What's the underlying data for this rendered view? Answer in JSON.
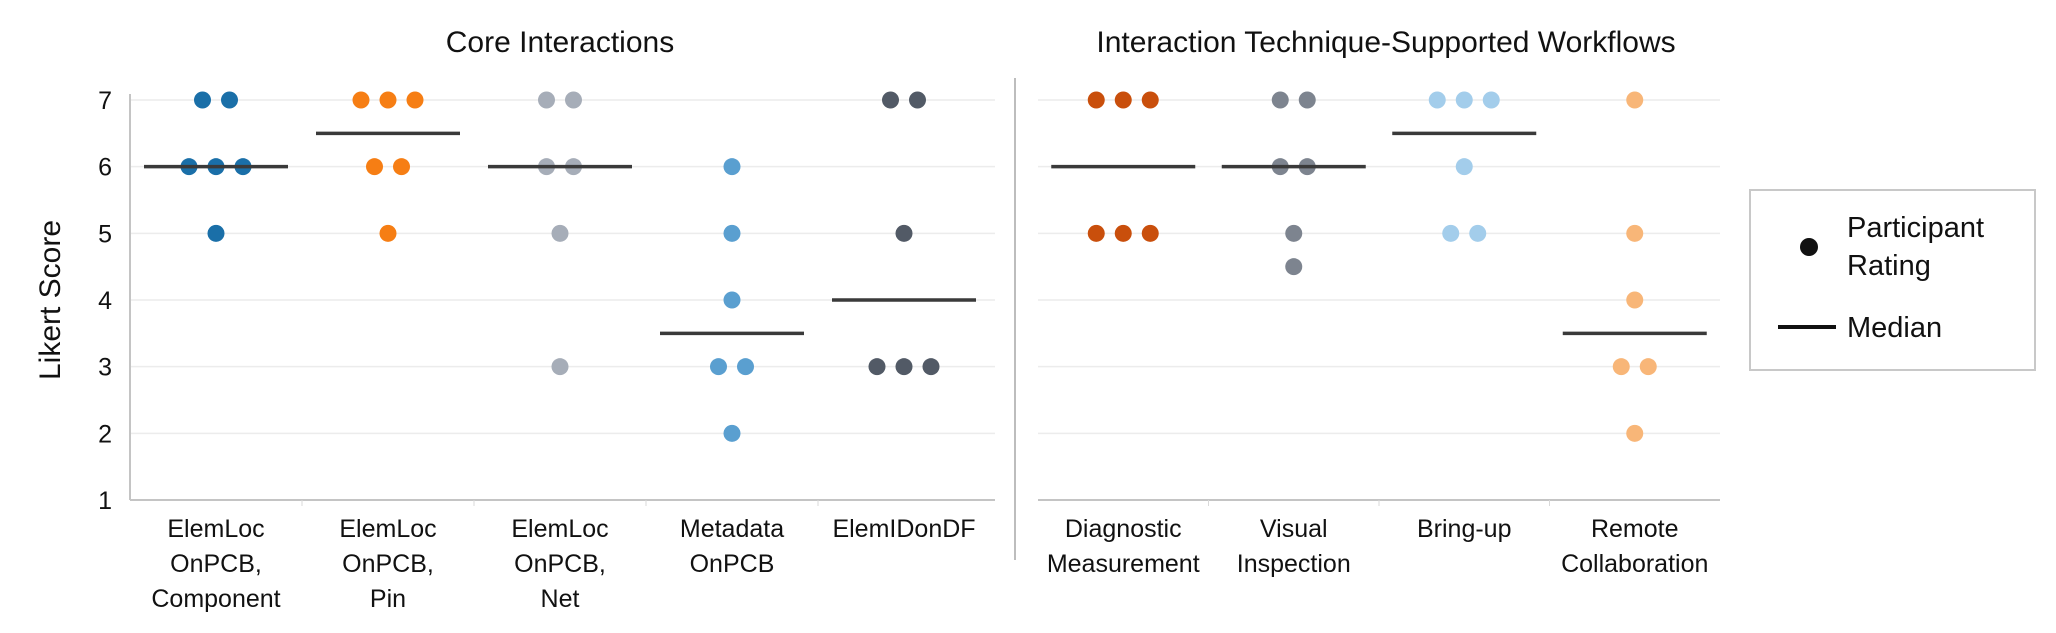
{
  "chart_data": [
    {
      "type": "scatter",
      "title": "Core Interactions",
      "ylabel": "Likert Score",
      "ylim": [
        1,
        7
      ],
      "yticks": [
        1,
        2,
        3,
        4,
        5,
        6,
        7
      ],
      "grid": true,
      "categories": [
        {
          "label": [
            "ElemLoc",
            "OnPCB,",
            "Component"
          ],
          "color": "#1a6fa8",
          "median": 6.0,
          "points": [
            7,
            7,
            6,
            6,
            6,
            5
          ]
        },
        {
          "label": [
            "ElemLoc",
            "OnPCB,",
            "Pin"
          ],
          "color": "#f67e14",
          "median": 6.5,
          "points": [
            7,
            7,
            7,
            6,
            6,
            5
          ]
        },
        {
          "label": [
            "ElemLoc",
            "OnPCB,",
            "Net"
          ],
          "color": "#a6adb8",
          "median": 6.0,
          "points": [
            7,
            7,
            6,
            6,
            5,
            3
          ]
        },
        {
          "label": [
            "Metadata",
            "OnPCB"
          ],
          "color": "#5a9fd0",
          "median": 3.5,
          "points": [
            6,
            5,
            4,
            3,
            3,
            2
          ]
        },
        {
          "label": [
            "ElemIDonDF"
          ],
          "color": "#525a66",
          "median": 4.0,
          "points": [
            7,
            7,
            5,
            3,
            3,
            3
          ]
        }
      ]
    },
    {
      "type": "scatter",
      "title": "Interaction Technique-Supported Workflows",
      "ylim": [
        1,
        7
      ],
      "grid": true,
      "categories": [
        {
          "label": [
            "Diagnostic",
            "Measurement"
          ],
          "color": "#c94f0c",
          "median": 6.0,
          "points": [
            7,
            7,
            7,
            5,
            5,
            5
          ]
        },
        {
          "label": [
            "Visual",
            "Inspection"
          ],
          "color": "#7d848f",
          "median": 6.0,
          "points": [
            7,
            7,
            6,
            6,
            5,
            4.5
          ]
        },
        {
          "label": [
            "Bring-up"
          ],
          "color": "#a3cdeb",
          "median": 6.5,
          "points": [
            7,
            7,
            7,
            6,
            5,
            5
          ]
        },
        {
          "label": [
            "Remote",
            "Collaboration"
          ],
          "color": "#f8b678",
          "median": 3.5,
          "points": [
            7,
            5,
            4,
            3,
            3,
            2
          ]
        }
      ]
    }
  ],
  "legend": {
    "items": [
      {
        "kind": "dot",
        "label": [
          "Participant",
          "Rating"
        ]
      },
      {
        "kind": "line",
        "label": [
          "Median"
        ]
      }
    ],
    "position": "right"
  }
}
